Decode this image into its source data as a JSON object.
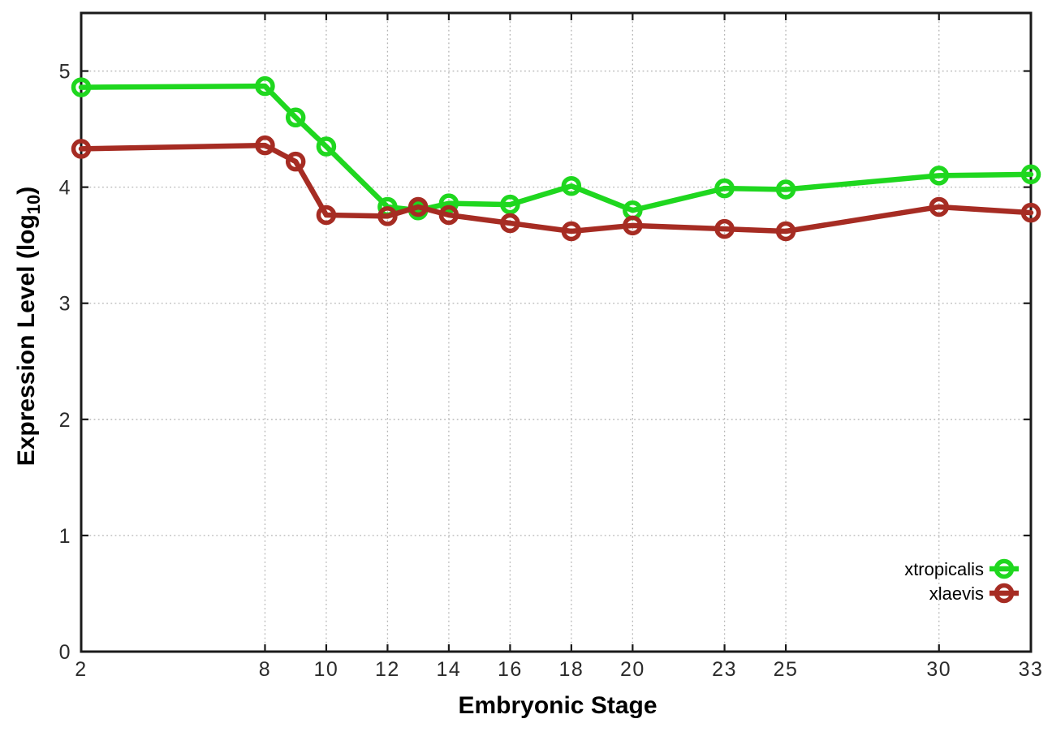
{
  "chart_data": {
    "type": "line",
    "title": "",
    "xlabel": "Embryonic Stage",
    "ylabel": {
      "pre": "Expression Level (log",
      "sub": "10",
      "post": ")"
    },
    "xlim": [
      2,
      33
    ],
    "ylim": [
      0,
      5.5
    ],
    "xticks": [
      2,
      8,
      10,
      12,
      14,
      16,
      18,
      20,
      23,
      25,
      30,
      33
    ],
    "yticks": [
      0,
      1,
      2,
      3,
      4,
      5
    ],
    "grid": true,
    "legend_position": "inside-right",
    "marker": "open-circle",
    "x": [
      2,
      8,
      9,
      10,
      12,
      13,
      14,
      16,
      18,
      20,
      23,
      25,
      30,
      33
    ],
    "series": [
      {
        "name": "xtropicalis",
        "color": "#1fd71f",
        "values": [
          4.86,
          4.87,
          4.6,
          4.35,
          3.83,
          3.8,
          3.86,
          3.85,
          4.01,
          3.8,
          3.99,
          3.98,
          4.1,
          4.11
        ]
      },
      {
        "name": "xlaevis",
        "color": "#a62c23",
        "values": [
          4.33,
          4.36,
          4.22,
          3.76,
          3.75,
          3.83,
          3.76,
          3.69,
          3.62,
          3.67,
          3.64,
          3.62,
          3.83,
          3.78
        ]
      }
    ],
    "colors": {
      "background": "#ffffff",
      "axis": "#1a1a1a",
      "grid": "#b5b5b5",
      "tick_label": "#2b2b2b"
    }
  }
}
